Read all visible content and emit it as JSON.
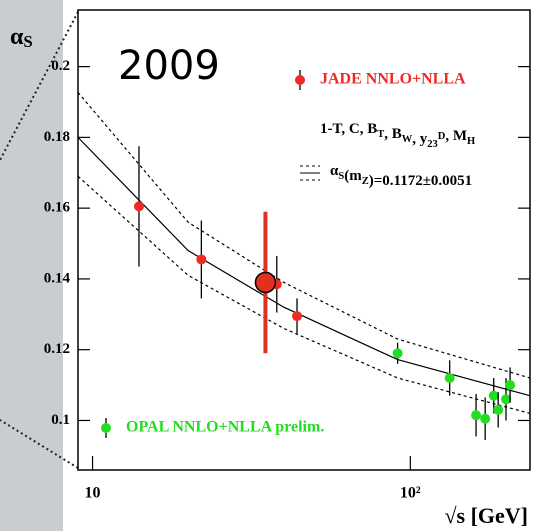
{
  "chart_data": {
    "type": "scatter",
    "x_label": "√s [GeV]",
    "y_label": [
      {
        "t": "α"
      },
      {
        "sub": "S"
      }
    ],
    "annotations": {
      "year": "2009",
      "observables": [
        {
          "t": "1-T, C, B"
        },
        {
          "sub": "T"
        },
        {
          "t": ", B"
        },
        {
          "sub": "W"
        },
        {
          "t": ", y"
        },
        {
          "sub": "23"
        },
        {
          "sup": "D"
        },
        {
          "t": ", M"
        },
        {
          "sub": "H"
        }
      ],
      "fit": [
        {
          "t": "α"
        },
        {
          "sub": "S"
        },
        {
          "t": "(m"
        },
        {
          "sub": "Z"
        },
        {
          "t": ")=0.1172±0.0051"
        }
      ]
    },
    "log_x": true,
    "xlim": [
      9,
      238
    ],
    "ylim": [
      0.086,
      0.216
    ],
    "xticks": [
      10,
      {
        "value": 100,
        "label": "10²"
      }
    ],
    "yticks": [
      0.1,
      0.12,
      0.14,
      0.16,
      0.18,
      0.2
    ],
    "series": [
      {
        "name": "JADE NNLO+NLLA",
        "color": "#ee2a24",
        "legend": "top-right",
        "x": [
          14,
          22,
          38,
          44
        ],
        "values": [
          0.1605,
          0.1455,
          0.1385,
          0.1295
        ],
        "errors": [
          0.017,
          0.011,
          0.008,
          0.005
        ]
      },
      {
        "name": "OPAL NNLO+NLLA prelim.",
        "color": "#22dd22",
        "legend": "bottom-left",
        "x": [
          91.2,
          133,
          161,
          172,
          183,
          189,
          200,
          206
        ],
        "values": [
          0.119,
          0.112,
          0.1015,
          0.1005,
          0.107,
          0.103,
          0.106,
          0.11
        ],
        "errors": [
          0.003,
          0.005,
          0.006,
          0.006,
          0.005,
          0.005,
          0.006,
          0.005
        ]
      }
    ],
    "highlight": {
      "x": 35,
      "value": 0.139,
      "error": 0.02,
      "color": "#e03020"
    },
    "curves": [
      {
        "style": "solid",
        "x": [
          9,
          20,
          40,
          91.2,
          238
        ],
        "values": [
          0.18,
          0.148,
          0.132,
          0.1172,
          0.107
        ]
      },
      {
        "style": "dashed",
        "x": [
          9,
          20,
          40,
          91.2,
          238
        ],
        "values": [
          0.1927,
          0.156,
          0.139,
          0.123,
          0.112
        ]
      },
      {
        "style": "dashed",
        "x": [
          9,
          20,
          40,
          91.2,
          238
        ],
        "values": [
          0.169,
          0.141,
          0.126,
          0.112,
          0.102
        ]
      }
    ]
  }
}
